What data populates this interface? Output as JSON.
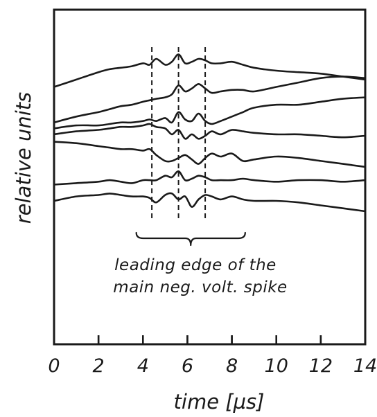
{
  "chart_data": {
    "type": "line",
    "xlabel": "time [µs]",
    "ylabel": "relative units",
    "xlim": [
      0,
      14
    ],
    "x_ticks": [
      "0",
      "2",
      "4",
      "6",
      "8",
      "10",
      "12",
      "14"
    ],
    "grid": false,
    "legend": "none",
    "line_color": "#1a1a1a",
    "series": [
      {
        "x": [
          0,
          1,
          2,
          2.5,
          3,
          3.5,
          4,
          4.3,
          4.6,
          5,
          5.3,
          5.6,
          5.9,
          6.2,
          6.5,
          6.8,
          7.1,
          7.5,
          8,
          8.5,
          9,
          10,
          11,
          12,
          13,
          14
        ],
        "y": [
          4.2,
          4.45,
          4.7,
          4.8,
          4.85,
          4.9,
          5.0,
          4.95,
          5.15,
          4.95,
          5.05,
          5.3,
          5.0,
          5.05,
          5.15,
          5.1,
          5.0,
          5.0,
          5.05,
          4.95,
          4.85,
          4.75,
          4.7,
          4.65,
          4.55,
          4.45
        ]
      },
      {
        "x": [
          0,
          1,
          2,
          2.5,
          3,
          3.5,
          4,
          4.3,
          4.6,
          5,
          5.3,
          5.6,
          5.9,
          6.2,
          6.5,
          6.8,
          7.1,
          7.5,
          8,
          8.5,
          9,
          10,
          11,
          12,
          13,
          14
        ],
        "y": [
          3.0,
          3.2,
          3.35,
          3.45,
          3.55,
          3.6,
          3.7,
          3.75,
          3.8,
          3.85,
          3.95,
          4.25,
          4.05,
          4.15,
          4.3,
          4.15,
          4.0,
          4.05,
          4.1,
          4.1,
          4.05,
          4.2,
          4.35,
          4.5,
          4.55,
          4.5
        ]
      },
      {
        "x": [
          0,
          1,
          2,
          2.5,
          3,
          3.5,
          4,
          4.3,
          4.6,
          5,
          5.3,
          5.6,
          5.9,
          6.2,
          6.5,
          6.8,
          7.1,
          7.5,
          8,
          8.5,
          9,
          10,
          11,
          12,
          13,
          14
        ],
        "y": [
          2.8,
          2.9,
          2.9,
          2.95,
          3.0,
          3.0,
          3.05,
          3.1,
          3.05,
          3.15,
          3.0,
          3.35,
          3.1,
          3.05,
          3.3,
          3.05,
          2.95,
          3.05,
          3.2,
          3.35,
          3.5,
          3.6,
          3.6,
          3.7,
          3.8,
          3.85
        ]
      },
      {
        "x": [
          0,
          1,
          2,
          2.5,
          3,
          3.5,
          4,
          4.3,
          4.6,
          5,
          5.3,
          5.6,
          5.9,
          6.2,
          6.5,
          6.8,
          7.1,
          7.5,
          8,
          8.5,
          9,
          10,
          11,
          12,
          13,
          14
        ],
        "y": [
          2.6,
          2.7,
          2.75,
          2.8,
          2.85,
          2.85,
          2.9,
          2.95,
          2.85,
          2.8,
          2.6,
          2.75,
          2.45,
          2.6,
          2.45,
          2.55,
          2.7,
          2.6,
          2.75,
          2.7,
          2.65,
          2.6,
          2.6,
          2.55,
          2.5,
          2.55
        ]
      },
      {
        "x": [
          0,
          1,
          2,
          2.5,
          3,
          3.5,
          4,
          4.3,
          4.6,
          5,
          5.3,
          5.6,
          5.9,
          6.2,
          6.5,
          6.8,
          7.1,
          7.5,
          8,
          8.5,
          9,
          10,
          11,
          12,
          13,
          14
        ],
        "y": [
          2.35,
          2.3,
          2.2,
          2.15,
          2.1,
          2.1,
          2.05,
          2.1,
          1.9,
          1.7,
          1.7,
          1.8,
          1.9,
          1.75,
          1.6,
          1.8,
          1.95,
          1.85,
          1.95,
          1.7,
          1.75,
          1.85,
          1.8,
          1.7,
          1.6,
          1.5
        ]
      },
      {
        "x": [
          0,
          1,
          2,
          2.5,
          3,
          3.5,
          4,
          4.3,
          4.6,
          5,
          5.3,
          5.6,
          5.9,
          6.2,
          6.5,
          6.8,
          7.1,
          7.5,
          8,
          8.5,
          9,
          10,
          11,
          12,
          13,
          14
        ],
        "y": [
          0.9,
          0.95,
          1.0,
          1.05,
          1.0,
          0.95,
          1.05,
          1.05,
          1.05,
          1.2,
          1.15,
          1.35,
          1.05,
          1.1,
          1.2,
          1.15,
          1.05,
          1.05,
          1.05,
          1.1,
          1.05,
          1.0,
          1.05,
          1.05,
          1.0,
          1.05
        ]
      },
      {
        "x": [
          0,
          1,
          2,
          2.5,
          3,
          3.5,
          4,
          4.3,
          4.6,
          5,
          5.3,
          5.6,
          5.9,
          6.2,
          6.5,
          6.8,
          7.1,
          7.5,
          8,
          8.5,
          9,
          10,
          11,
          12,
          13,
          14
        ],
        "y": [
          0.35,
          0.5,
          0.55,
          0.6,
          0.55,
          0.5,
          0.5,
          0.45,
          0.3,
          0.55,
          0.6,
          0.4,
          0.5,
          0.15,
          0.4,
          0.55,
          0.5,
          0.4,
          0.5,
          0.4,
          0.35,
          0.35,
          0.3,
          0.2,
          0.1,
          0.0
        ]
      }
    ],
    "reference_lines": [
      {
        "x": 4.4
      },
      {
        "x": 5.6
      },
      {
        "x": 6.8
      }
    ],
    "annotation": {
      "text_line1": "leading edge of the",
      "text_line2": "main neg. volt. spike",
      "x_start": 3.7,
      "x_end": 8.6
    }
  }
}
